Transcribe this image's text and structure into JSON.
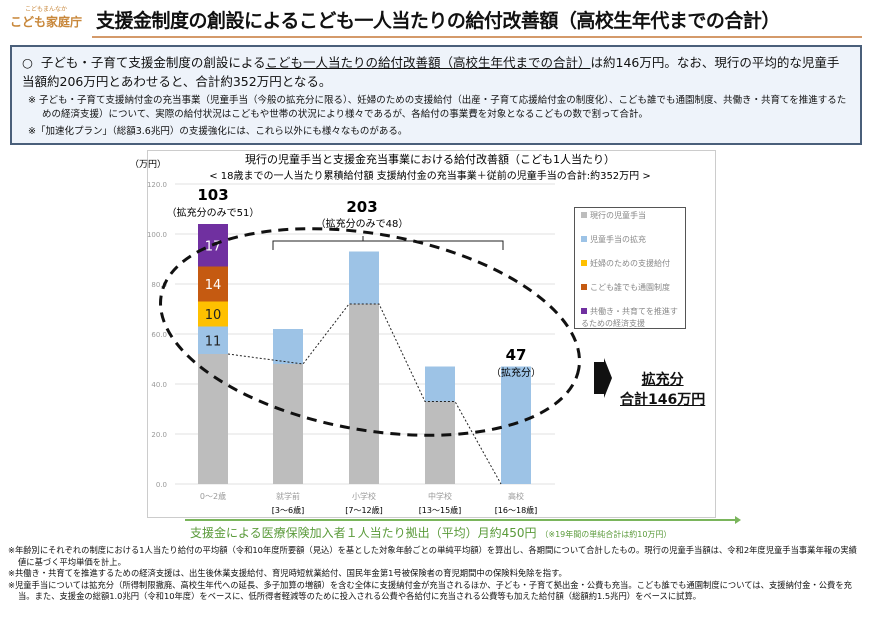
{
  "logo": {
    "tag": "こどもまんなか",
    "name": "こども家庭庁"
  },
  "title": "支援金制度の創設によるこども一人当たりの給付改善額（高校生年代までの合計）",
  "summary": {
    "bullet": "○",
    "line1_pre": "子ども・子育て支援金制度の創設による",
    "line1_underlined": "こども一人当たりの給付改善額（高校生年代までの合計）",
    "line1_post": "は約146万円。なお、現行の平均的な児童手当額約206万円とあわせると、合計約352万円となる。",
    "note1": "※ 子ども・子育て支援納付金の充当事業（児童手当（今般の拡充分に限る）、妊婦のための支援給付（出産・子育て応援給付金の制度化）、こども誰でも通園制度、共働き・共育てを推進するための経済支援）について、実際の給付状況はこどもや世帯の状況により様々であるが、各給付の事業費を対象となるこどもの数で割って合計。",
    "note2": "※「加速化プラン」（総額3.6兆円）の支援強化には、これら以外にも様々なものがある。"
  },
  "chart_data": {
    "type": "bar",
    "stacked": true,
    "title": "現行の児童手当と支援金充当事業における給付改善額（こども1人当たり）",
    "subtitle": "< 18歳までの一人当たり累積給付額 支援納付金の充当事業＋従前の児童手当の合計:約352万円 >",
    "ylabel": "（万円）",
    "ylim": [
      0,
      120
    ],
    "yticks": [
      "0.0",
      "20.0",
      "40.0",
      "60.0",
      "80.0",
      "100.0",
      "120.0"
    ],
    "grid": true,
    "legend_position": "right",
    "categories": [
      {
        "line1": "0～2歳",
        "line2": ""
      },
      {
        "line1": "就学前",
        "line2": "[3～6歳]"
      },
      {
        "line1": "小学校",
        "line2": "[7～12歳]"
      },
      {
        "line1": "中学校",
        "line2": "[13～15歳]"
      },
      {
        "line1": "高校",
        "line2": "[16～18歳]"
      }
    ],
    "series": [
      {
        "name": "現行の児童手当",
        "color": "#bdbdbd",
        "values": [
          52,
          48,
          72,
          33,
          0
        ]
      },
      {
        "name": "児童手当の拡充",
        "color": "#9dc3e6",
        "values": [
          11,
          14,
          21,
          14,
          47
        ]
      },
      {
        "name": "妊婦のための支援給付",
        "color": "#ffc000",
        "values": [
          10,
          0,
          0,
          0,
          0
        ]
      },
      {
        "name": "こども誰でも通園制度",
        "color": "#c55a11",
        "values": [
          14,
          0,
          0,
          0,
          0
        ]
      },
      {
        "name": "共働き・共育てを推進するための経済支援",
        "color": "#7030a0",
        "values": [
          17,
          0,
          0,
          0,
          0
        ]
      }
    ],
    "data_labels": [
      "11",
      "10",
      "14",
      "17"
    ],
    "annotations": {
      "a1_total": "103",
      "a1_sub_pre": "（拡充分のみで",
      "a1_sub_val": "51",
      "a1_sub_post": "）",
      "a2_total": "203",
      "a2_sub_pre": "（拡充分のみで",
      "a2_sub_val": "48",
      "a2_sub_post": "）",
      "a3_total": "47",
      "a3_sub": "（拡充分）"
    }
  },
  "result": {
    "line1": "拡充分",
    "line2": "合計146万円"
  },
  "contribution": {
    "main": "支援金による医療保険加入者１人当たり拠出（平均）月約450円",
    "sub": "（※19年間の単純合計は約10万円）"
  },
  "footnotes": [
    "※年齢別にそれぞれの制度における1人当たり給付の平均額（令和10年度所要額（見込）を基とした対象年齢ごとの単純平均額）を算出し、各期間について合計したもの。現行の児童手当額は、令和2年度児童手当事業年報の実績値に基づく平均単価を計上。",
    "※共働き・共育てを推進するための経済支援は、出生後休業支援給付、育児時短就業給付、国民年金第1号被保険者の育児期間中の保険料免除を指す。",
    "※児童手当については拡充分（所得制限撤廃、高校生年代への延長、多子加算の増額）を含む全体に支援納付金が充当されるほか、子ども・子育て拠出金・公費も充当。こども誰でも通園制度については、支援納付金・公費を充当。また、支援金の総額1.0兆円（令和10年度）をベースに、低所得者軽減等のために投入される公費や各給付に充当される公費等も加えた給付額（総額約1.5兆円）をベースに試算。"
  ]
}
